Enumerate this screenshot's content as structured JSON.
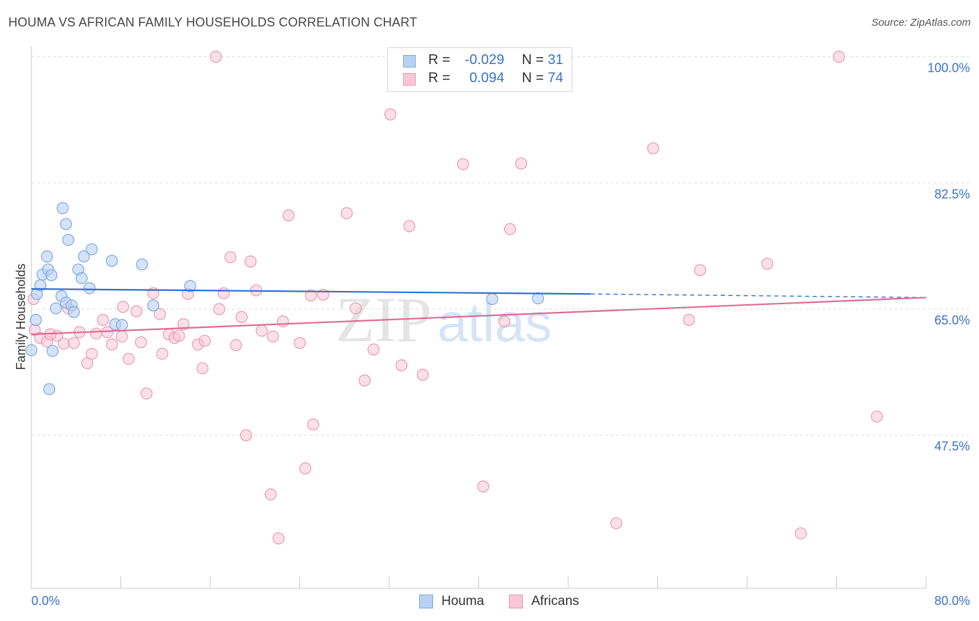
{
  "header": {
    "title": "HOUMA VS AFRICAN FAMILY HOUSEHOLDS CORRELATION CHART",
    "source": "Source: ZipAtlas.com"
  },
  "watermark": {
    "part1": "ZIP",
    "part2": "atlas"
  },
  "legend": {
    "r_label": "R =",
    "n_label": "N =",
    "houma": {
      "r": "-0.029",
      "n": "31"
    },
    "africans": {
      "r": "0.094",
      "n": "74"
    }
  },
  "colors": {
    "houma_fill": "#b8d1f3",
    "houma_stroke": "#7ea7e0",
    "houma_line": "#2f6fce",
    "africans_fill": "#f8c6d6",
    "africans_stroke": "#e89ab4",
    "africans_line": "#e06a94",
    "axis_label": "#3a72c8",
    "grid": "#dddddd"
  },
  "chart_data": {
    "type": "scatter",
    "title": "HOUMA VS AFRICAN FAMILY HOUSEHOLDS CORRELATION CHART",
    "xlabel": "",
    "ylabel": "Family Households",
    "xlim": [
      0,
      80
    ],
    "ylim": [
      28.5,
      101.5
    ],
    "x_tick_labels": [
      {
        "value": 0,
        "label": "0.0%"
      },
      {
        "value": 80,
        "label": "80.0%"
      }
    ],
    "y_tick_labels": [
      {
        "value": 100,
        "label": "100.0%"
      },
      {
        "value": 82.5,
        "label": "82.5%"
      },
      {
        "value": 65,
        "label": "65.0%"
      },
      {
        "value": 47.5,
        "label": "47.5%"
      }
    ],
    "series": [
      {
        "name": "Houma",
        "r": -0.029,
        "n": 31,
        "trend": {
          "x0": 0,
          "y0": 67.8,
          "x1": 50,
          "y1": 67.1,
          "dashed_to_x": 80,
          "dashed_to_y": 66.6
        },
        "points": [
          [
            0.0,
            59.3
          ],
          [
            0.4,
            63.5
          ],
          [
            0.5,
            67.1
          ],
          [
            0.8,
            68.3
          ],
          [
            1.0,
            69.8
          ],
          [
            1.4,
            72.3
          ],
          [
            1.5,
            70.5
          ],
          [
            1.6,
            53.9
          ],
          [
            1.8,
            69.7
          ],
          [
            1.9,
            59.2
          ],
          [
            2.2,
            65.1
          ],
          [
            2.7,
            66.8
          ],
          [
            2.8,
            79.0
          ],
          [
            3.1,
            65.9
          ],
          [
            3.1,
            76.8
          ],
          [
            3.3,
            74.6
          ],
          [
            3.6,
            65.5
          ],
          [
            3.8,
            64.6
          ],
          [
            4.2,
            70.5
          ],
          [
            4.5,
            69.3
          ],
          [
            4.7,
            72.3
          ],
          [
            5.2,
            67.9
          ],
          [
            5.4,
            73.3
          ],
          [
            7.2,
            71.7
          ],
          [
            7.5,
            62.9
          ],
          [
            8.1,
            62.8
          ],
          [
            9.9,
            71.2
          ],
          [
            10.9,
            65.5
          ],
          [
            14.2,
            68.2
          ],
          [
            41.2,
            66.4
          ],
          [
            45.3,
            66.5
          ]
        ]
      },
      {
        "name": "Africans",
        "r": 0.094,
        "n": 74,
        "trend": {
          "x0": 0,
          "y0": 61.5,
          "x1": 80,
          "y1": 66.6
        },
        "points": [
          [
            0.3,
            62.1
          ],
          [
            0.8,
            61.0
          ],
          [
            1.4,
            60.5
          ],
          [
            2.3,
            61.3
          ],
          [
            2.9,
            60.2
          ],
          [
            3.3,
            65.1
          ],
          [
            3.8,
            60.3
          ],
          [
            4.3,
            61.8
          ],
          [
            5.0,
            57.5
          ],
          [
            5.4,
            58.8
          ],
          [
            5.8,
            61.6
          ],
          [
            6.4,
            63.5
          ],
          [
            6.8,
            61.8
          ],
          [
            7.2,
            60.1
          ],
          [
            8.1,
            61.2
          ],
          [
            8.2,
            65.3
          ],
          [
            8.7,
            58.1
          ],
          [
            9.4,
            64.7
          ],
          [
            9.8,
            60.4
          ],
          [
            10.3,
            53.3
          ],
          [
            10.9,
            67.2
          ],
          [
            11.5,
            64.3
          ],
          [
            11.7,
            58.8
          ],
          [
            12.3,
            61.5
          ],
          [
            12.8,
            61.0
          ],
          [
            13.2,
            61.3
          ],
          [
            13.6,
            62.9
          ],
          [
            14.0,
            67.1
          ],
          [
            14.9,
            60.1
          ],
          [
            15.3,
            56.8
          ],
          [
            15.5,
            60.6
          ],
          [
            16.5,
            100.0
          ],
          [
            16.8,
            65.0
          ],
          [
            17.2,
            67.2
          ],
          [
            17.8,
            72.2
          ],
          [
            18.3,
            60.0
          ],
          [
            18.8,
            63.9
          ],
          [
            19.2,
            47.5
          ],
          [
            19.6,
            71.6
          ],
          [
            20.1,
            67.6
          ],
          [
            20.6,
            62.0
          ],
          [
            21.4,
            39.3
          ],
          [
            21.6,
            61.2
          ],
          [
            22.1,
            33.2
          ],
          [
            22.5,
            63.3
          ],
          [
            23.0,
            78.0
          ],
          [
            24.0,
            60.3
          ],
          [
            24.5,
            42.9
          ],
          [
            25.0,
            66.9
          ],
          [
            25.2,
            49.0
          ],
          [
            26.1,
            67.0
          ],
          [
            28.2,
            78.3
          ],
          [
            29.0,
            65.1
          ],
          [
            29.8,
            55.1
          ],
          [
            30.6,
            59.4
          ],
          [
            32.1,
            92.0
          ],
          [
            33.1,
            57.2
          ],
          [
            33.8,
            76.5
          ],
          [
            35.0,
            55.9
          ],
          [
            38.6,
            85.1
          ],
          [
            40.4,
            40.4
          ],
          [
            42.3,
            63.3
          ],
          [
            42.8,
            76.1
          ],
          [
            43.8,
            85.2
          ],
          [
            52.3,
            35.3
          ],
          [
            55.6,
            87.3
          ],
          [
            58.8,
            63.5
          ],
          [
            59.8,
            70.4
          ],
          [
            65.8,
            71.3
          ],
          [
            68.8,
            33.9
          ],
          [
            72.2,
            100.0
          ],
          [
            75.6,
            50.1
          ],
          [
            0.2,
            66.4
          ],
          [
            1.7,
            61.5
          ]
        ]
      }
    ]
  },
  "bottom_legend": {
    "houma": "Houma",
    "africans": "Africans"
  }
}
